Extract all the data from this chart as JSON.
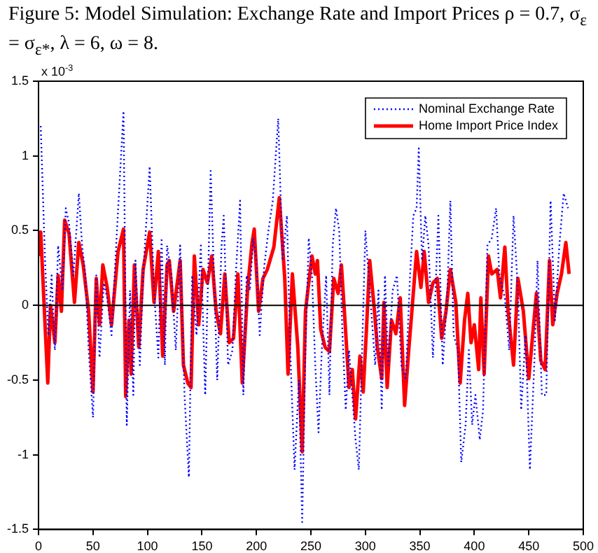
{
  "chart_data": {
    "type": "line",
    "title": "Figure 5: Model Simulation: Exchange Rate and Import Prices ρ = 0.7, σ$_{ε}$ = σ$_{ε*}$, λ = 6, ω = 8.",
    "annotations": [
      "x 10$^{-3}$"
    ],
    "xlim": [
      0,
      500
    ],
    "xticks": [
      0,
      50,
      100,
      150,
      200,
      250,
      300,
      350,
      400,
      450,
      500
    ],
    "ylim": [
      -1.5,
      1.5
    ],
    "yticks": [
      -1.5,
      -1,
      -0.5,
      0,
      0.5,
      1,
      1.5
    ],
    "grid": false,
    "legend": "top right",
    "marker": "none",
    "ref_lines": [
      {
        "axis": "y",
        "value": 0,
        "color": "#000000"
      }
    ],
    "series": [
      {
        "name": "Nominal Exchange Rate",
        "color": "#0000ff",
        "line_style": "dotted",
        "x": [
          2,
          6,
          9,
          12,
          15,
          18,
          22,
          25,
          28,
          32,
          37,
          40,
          43,
          46,
          50,
          53,
          56,
          60,
          63,
          67,
          72,
          78,
          81,
          84,
          87,
          89,
          93,
          96,
          102,
          106,
          110,
          113,
          116,
          118,
          122,
          126,
          130,
          134,
          138,
          141,
          145,
          149,
          153,
          156,
          158,
          161,
          164,
          168,
          170,
          174,
          178,
          181,
          185,
          188,
          191,
          194,
          197,
          200,
          203,
          207,
          211,
          215,
          220,
          224,
          228,
          231,
          235,
          239,
          242,
          245,
          248,
          251,
          254,
          257,
          260,
          264,
          267,
          270,
          273,
          276,
          279,
          282,
          285,
          288,
          291,
          294,
          297,
          300,
          303,
          306,
          309,
          312,
          315,
          318,
          321,
          325,
          329,
          333,
          337,
          341,
          344,
          347,
          349,
          352,
          355,
          358,
          362,
          367,
          371,
          375,
          378,
          381,
          385,
          388,
          392,
          395,
          398,
          401,
          405,
          408,
          412,
          416,
          420,
          423,
          428,
          432,
          436,
          440,
          443,
          447,
          451,
          455,
          458,
          462,
          466,
          470,
          474,
          478,
          482,
          486
        ],
        "values": [
          1.2,
          0.3,
          -0.2,
          0.2,
          -0.3,
          0.4,
          0.1,
          0.65,
          0.55,
          0.2,
          0.75,
          0.4,
          0.2,
          -0.3,
          -0.75,
          0.2,
          -0.35,
          0.15,
          0.05,
          -0.2,
          0.5,
          1.3,
          -0.8,
          0.1,
          -0.6,
          0.3,
          -0.4,
          0.2,
          0.93,
          0.1,
          -0.35,
          0.45,
          -0.4,
          0.4,
          0.2,
          -0.3,
          0.4,
          -0.6,
          -1.15,
          0.2,
          -0.2,
          0.4,
          -0.6,
          0.3,
          0.9,
          0.2,
          -0.5,
          0.4,
          0.6,
          -0.4,
          -0.3,
          0.2,
          0.7,
          -0.6,
          0.2,
          0.1,
          0.45,
          0.3,
          -0.2,
          0.25,
          0.5,
          0.7,
          1.25,
          0.3,
          0.6,
          -0.3,
          -1.1,
          -0.5,
          -1.45,
          -0.3,
          0.45,
          0.2,
          -0.4,
          -0.85,
          -0.3,
          0.2,
          -0.6,
          0.4,
          0.65,
          0.5,
          -0.2,
          -0.7,
          -0.3,
          -0.6,
          -0.9,
          -1.1,
          -0.3,
          0.5,
          0.2,
          -0.1,
          -0.4,
          0.1,
          -0.7,
          0.2,
          -0.4,
          0.1,
          0.2,
          -0.4,
          -0.5,
          0.2,
          0.6,
          0.65,
          1.05,
          0.3,
          0.6,
          0.4,
          -0.35,
          0.6,
          -0.4,
          0.05,
          0.7,
          -0.2,
          -0.3,
          -1.05,
          -0.8,
          -0.3,
          -0.8,
          -0.6,
          -0.9,
          -0.7,
          0.4,
          0.45,
          0.65,
          0.2,
          0.05,
          -0.3,
          0.6,
          0.1,
          -0.7,
          -0.2,
          -1.1,
          -0.4,
          0.3,
          -0.6,
          -0.6,
          0.7,
          -0.1,
          0.4,
          0.75,
          0.65
        ]
      },
      {
        "name": "Home Import Price Index",
        "color": "#ff0000",
        "line_style": "solid",
        "x": [
          0,
          2,
          8.5,
          11,
          15,
          18,
          21,
          24,
          28,
          33,
          37,
          41,
          46,
          50,
          53,
          56,
          59,
          63,
          67,
          73,
          78,
          80,
          83,
          85,
          88,
          92,
          96,
          102,
          106,
          110,
          114,
          118,
          120,
          124,
          130,
          133,
          137,
          140,
          143,
          147,
          151,
          155,
          159,
          163,
          167,
          171,
          175,
          179,
          183,
          187,
          192,
          196,
          198,
          202,
          206,
          210,
          216,
          221,
          226,
          229,
          233,
          238,
          242,
          245,
          248,
          251,
          254,
          256,
          259,
          263,
          267,
          271,
          275,
          278,
          281,
          285,
          288,
          291,
          295,
          298,
          301,
          304,
          308,
          311,
          315,
          317,
          320,
          324,
          328,
          332,
          336,
          340,
          343,
          347,
          351,
          354,
          358,
          362,
          366,
          370,
          374,
          378,
          383,
          387,
          391,
          394,
          397,
          400,
          404,
          406,
          409,
          413,
          416,
          421,
          424,
          428,
          431,
          436,
          440,
          445,
          450,
          454,
          457,
          461,
          465,
          469,
          472,
          476,
          480,
          484,
          487
        ],
        "values": [
          0.33,
          0.49,
          -0.52,
          0,
          -0.25,
          0.2,
          -0.04,
          0.57,
          0.48,
          0.02,
          0.42,
          0.27,
          -0.04,
          -0.58,
          0.18,
          -0.13,
          0.27,
          0.12,
          -0.13,
          0.36,
          0.51,
          -0.61,
          -0.1,
          -0.46,
          0.27,
          -0.28,
          0.24,
          0.49,
          0.02,
          0.36,
          -0.34,
          0.27,
          0.3,
          -0.04,
          0.3,
          -0.4,
          -0.52,
          -0.55,
          0.33,
          -0.13,
          0.24,
          0.15,
          0.33,
          -0.04,
          -0.19,
          0.21,
          -0.25,
          -0.22,
          0.21,
          -0.52,
          0.12,
          0.42,
          0.51,
          -0.04,
          0.18,
          0.24,
          0.39,
          0.72,
          0.18,
          -0.46,
          0.21,
          -0.28,
          -0.98,
          -0.04,
          0.15,
          0.33,
          0.21,
          0.3,
          -0.16,
          -0.28,
          -0.31,
          0.18,
          0.08,
          0.27,
          -0.07,
          -0.55,
          -0.43,
          -0.76,
          -0.34,
          -0.58,
          -0.16,
          0.3,
          -0.01,
          -0.28,
          -0.49,
          0.02,
          -0.55,
          -0.1,
          -0.19,
          0.05,
          -0.67,
          -0.28,
          -0.01,
          0.36,
          0.12,
          0.36,
          0.02,
          0.15,
          0.18,
          -0.22,
          -0.04,
          0.24,
          0.02,
          -0.52,
          -0.1,
          0.08,
          -0.25,
          -0.13,
          -0.43,
          0.05,
          -0.46,
          0.33,
          0.21,
          0.24,
          0.05,
          0.39,
          -0.04,
          -0.4,
          0.18,
          -0.04,
          -0.49,
          -0.16,
          0.08,
          -0.37,
          -0.43,
          0.3,
          -0.13,
          0.08,
          0.21,
          0.42,
          0.21
        ]
      }
    ]
  }
}
